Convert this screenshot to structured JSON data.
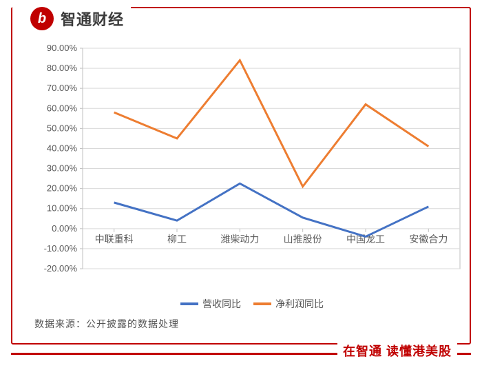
{
  "brand": {
    "logo_glyph": "b",
    "name": "智通财经"
  },
  "chart": {
    "type": "line",
    "categories": [
      "中联重科",
      "柳工",
      "潍柴动力",
      "山推股份",
      "中国龙工",
      "安徽合力"
    ],
    "series": [
      {
        "name": "营收同比",
        "values": [
          13.0,
          4.0,
          22.5,
          5.5,
          -4.0,
          11.0
        ],
        "color": "#4472c4",
        "line_width": 3
      },
      {
        "name": "净利润同比",
        "values": [
          58.0,
          45.0,
          84.0,
          21.0,
          62.0,
          41.0
        ],
        "color": "#ed7d31",
        "line_width": 3
      }
    ],
    "y_axis": {
      "min": -20,
      "max": 90,
      "step": 10,
      "format_suffix": ".00%"
    },
    "grid_color": "#d9d9d9",
    "axis_line_color": "#bfbfbf",
    "background_color": "#ffffff",
    "tick_label_color": "#595959",
    "tick_fontsize": 13,
    "category_fontsize": 14,
    "plot_border_color": "#bfbfbf"
  },
  "source_label": "数据来源：公开披露的数据处理",
  "footer_slogan": "在智通  读懂港美股",
  "frame_color": "#c00000"
}
